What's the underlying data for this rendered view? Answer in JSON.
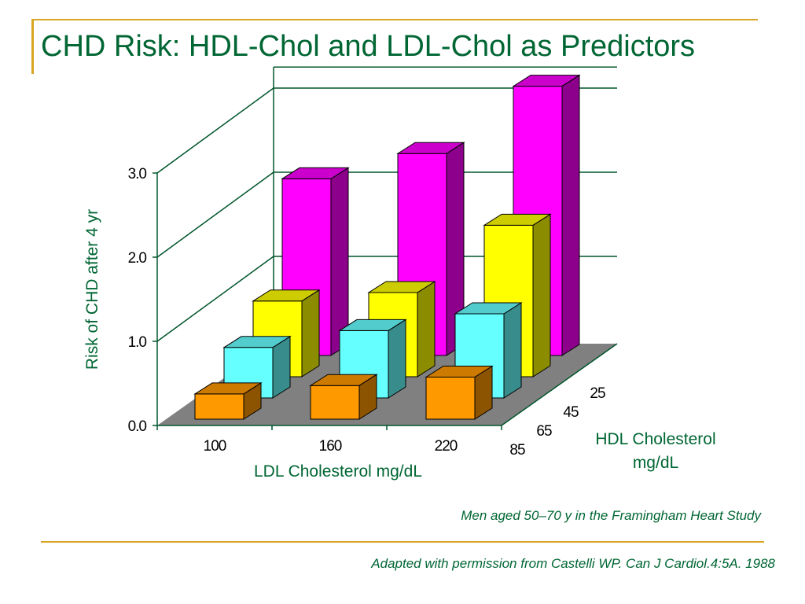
{
  "title": "CHD Risk: HDL-Chol and LDL-Chol as Predictors",
  "footnote_study": "Men aged 50–70 y in the Framingham Heart Study",
  "footnote_source": "Adapted with permission from Castelli WP. Can J Cardiol.4:5A. 1988",
  "colors": {
    "accent_gold": "#d8a622",
    "text_green": "#006633",
    "grid_green": "#00552b",
    "floor": "#808080"
  },
  "chart_data": {
    "type": "bar",
    "title": "",
    "ylabel": "Risk of CHD after 4 yr",
    "xlabel": "LDL Cholesterol  mg/dL",
    "zlabel": [
      "HDL Cholesterol",
      "mg/dL"
    ],
    "ylim": [
      0,
      3
    ],
    "yticks": [
      "0.0",
      "1.0",
      "2.0",
      "3.0"
    ],
    "categories": [
      "100",
      "160",
      "220"
    ],
    "series": [
      {
        "name": "25",
        "values": [
          2.1,
          2.4,
          3.2
        ],
        "color": "#ff00ff"
      },
      {
        "name": "45",
        "values": [
          0.9,
          1.0,
          1.8
        ],
        "color": "#ffff00"
      },
      {
        "name": "65",
        "values": [
          0.6,
          0.8,
          1.0
        ],
        "color": "#66ffff"
      },
      {
        "name": "85",
        "values": [
          0.3,
          0.4,
          0.5
        ],
        "color": "#ff9900"
      }
    ],
    "grid": true
  }
}
